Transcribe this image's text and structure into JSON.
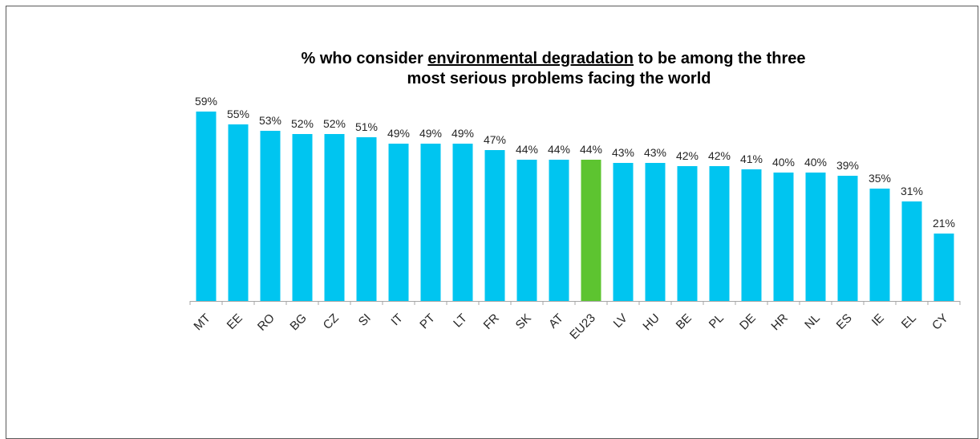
{
  "chart_data": {
    "type": "bar",
    "title_parts": {
      "before": "% who consider ",
      "underlined": "environmental degradation",
      "after": " to be among the three",
      "line2": "most serious problems facing the world"
    },
    "categories": [
      "MT",
      "EE",
      "RO",
      "BG",
      "CZ",
      "SI",
      "IT",
      "PT",
      "LT",
      "FR",
      "SK",
      "AT",
      "EU23",
      "LV",
      "HU",
      "BE",
      "PL",
      "DE",
      "HR",
      "NL",
      "ES",
      "IE",
      "EL",
      "CY"
    ],
    "values": [
      59,
      55,
      53,
      52,
      52,
      51,
      49,
      49,
      49,
      47,
      44,
      44,
      44,
      43,
      43,
      42,
      42,
      41,
      40,
      40,
      39,
      35,
      31,
      21
    ],
    "data_labels": [
      "59%",
      "55%",
      "53%",
      "52%",
      "52%",
      "51%",
      "49%",
      "49%",
      "49%",
      "47%",
      "44%",
      "44%",
      "44%",
      "43%",
      "43%",
      "42%",
      "42%",
      "41%",
      "40%",
      "40%",
      "39%",
      "35%",
      "31%",
      "21%"
    ],
    "highlight_category": "EU23",
    "ylim": [
      0,
      59
    ],
    "grid": false,
    "legend": "none",
    "colors": {
      "bar": "#00C5F0",
      "highlight": "#5DC430",
      "axis": "#A6A6A6",
      "text": "#262626"
    }
  }
}
